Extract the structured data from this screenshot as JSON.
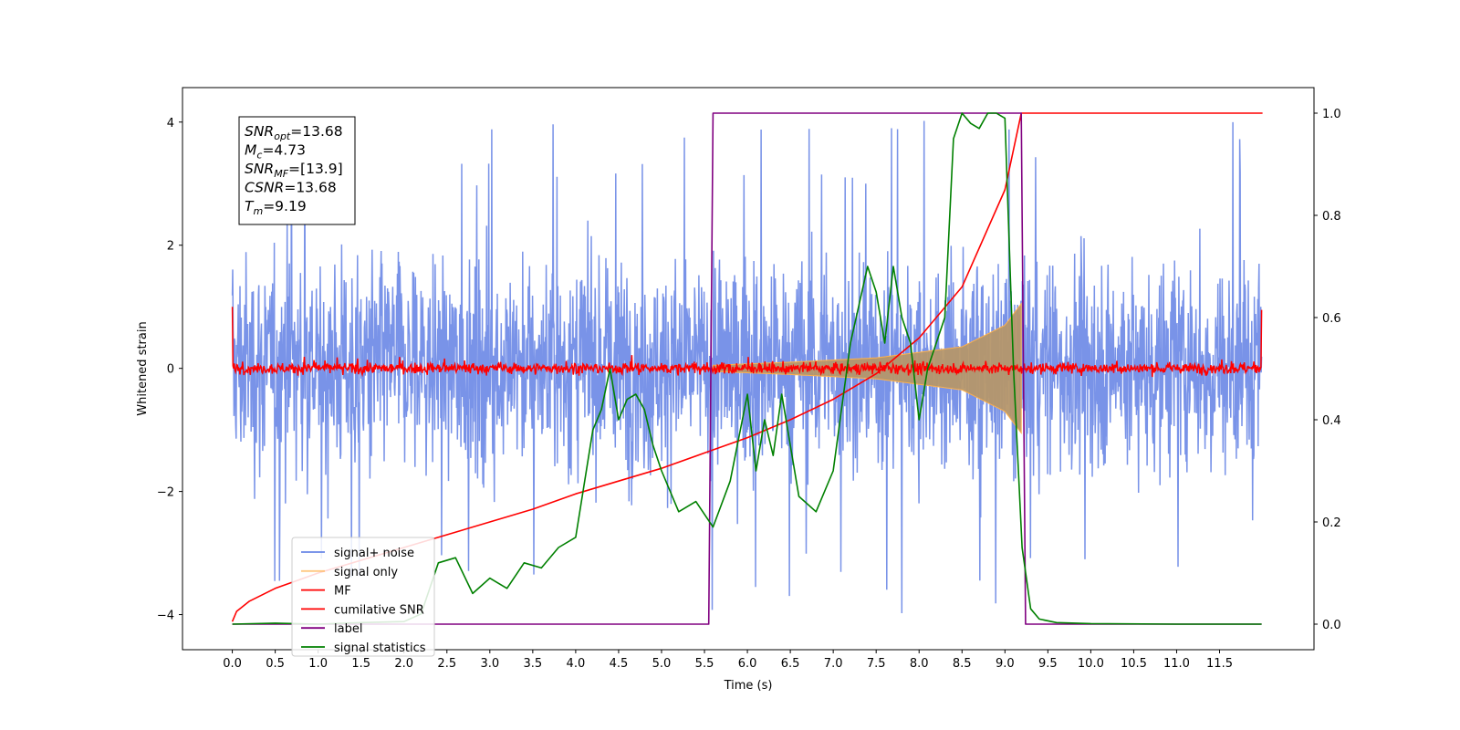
{
  "chart_data": {
    "type": "line",
    "xlabel": "Time (s)",
    "ylabel": "Whitened strain",
    "xlim": [
      -0.58,
      12.6
    ],
    "ylim": [
      -4.57,
      4.56
    ],
    "ylim_right": [
      -0.05,
      1.05
    ],
    "x_ticks": [
      0.0,
      0.5,
      1.0,
      1.5,
      2.0,
      2.5,
      3.0,
      3.5,
      4.0,
      4.5,
      5.0,
      5.5,
      6.0,
      6.5,
      7.0,
      7.5,
      8.0,
      8.5,
      9.0,
      9.5,
      10.0,
      10.5,
      11.0,
      11.5
    ],
    "x_tick_labels": [
      "0.0",
      "0.5",
      "1.0",
      "1.5",
      "2.0",
      "2.5",
      "3.0",
      "3.5",
      "4.0",
      "4.5",
      "5.0",
      "5.5",
      "6.0",
      "6.5",
      "7.0",
      "7.5",
      "8.0",
      "8.5",
      "9.0",
      "9.5",
      "10.0",
      "10.5",
      "11.0",
      "11.5"
    ],
    "y_ticks_left": [
      -4,
      -2,
      0,
      2,
      4
    ],
    "y_tick_labels_left": [
      "−4",
      "−2",
      "0",
      "2",
      "4"
    ],
    "y_ticks_right": [
      0.0,
      0.2,
      0.4,
      0.6,
      0.8,
      1.0
    ],
    "y_tick_labels_right": [
      "0.0",
      "0.2",
      "0.4",
      "0.6",
      "0.8",
      "1.0"
    ],
    "grid": false,
    "legend_position": "lower-left",
    "info_box": {
      "position": "top-left",
      "lines": [
        {
          "sym": "SNR",
          "sub": "opt",
          "val": "=13.68"
        },
        {
          "sym": "M",
          "sub": "c",
          "val": "=4.73"
        },
        {
          "sym": "SNR",
          "sub": "MF",
          "val": "=[13.9]"
        },
        {
          "sym": "CSNR",
          "sub": "",
          "val": "=13.68"
        },
        {
          "sym": "T",
          "sub": "m",
          "val": "=9.19"
        }
      ]
    },
    "series": [
      {
        "name": "signal+ noise",
        "color": "#6a87e6",
        "axis": "left",
        "kind": "noise-band",
        "x_range": [
          0.0,
          11.99
        ],
        "typical_envelope": [
          -2.0,
          2.1
        ],
        "peak_range": [
          -4.1,
          4.1
        ]
      },
      {
        "name": "signal only",
        "color": "#ffb14a",
        "axis": "left",
        "kind": "chirp-envelope",
        "x_range": [
          5.6,
          9.19
        ],
        "amplitude": [
          [
            5.6,
            0.05
          ],
          [
            6.5,
            0.1
          ],
          [
            7.5,
            0.17
          ],
          [
            8.5,
            0.35
          ],
          [
            9.0,
            0.7
          ],
          [
            9.19,
            1.05
          ]
        ]
      },
      {
        "name": "MF",
        "color": "#ff0000",
        "axis": "left",
        "kind": "noise-band",
        "x_range": [
          0.0,
          11.99
        ],
        "typical_envelope": [
          -0.08,
          0.12
        ],
        "edge_values": [
          1.0,
          0.95
        ]
      },
      {
        "name": "cumilative SNR",
        "color": "#ff0000",
        "axis": "right",
        "kind": "curve",
        "x": [
          0.0,
          0.05,
          0.2,
          0.5,
          1.0,
          1.5,
          2.0,
          2.5,
          3.0,
          3.5,
          4.0,
          4.5,
          5.0,
          5.5,
          6.0,
          6.5,
          7.0,
          7.5,
          8.0,
          8.5,
          9.0,
          9.19,
          9.2,
          12.0
        ],
        "y": [
          0.005,
          0.025,
          0.045,
          0.07,
          0.1,
          0.125,
          0.15,
          0.175,
          0.2,
          0.225,
          0.255,
          0.28,
          0.305,
          0.335,
          0.365,
          0.4,
          0.44,
          0.49,
          0.56,
          0.66,
          0.85,
          1.0,
          1.0,
          1.0
        ]
      },
      {
        "name": "label",
        "color": "#800080",
        "axis": "right",
        "kind": "step",
        "x": [
          0.0,
          5.55,
          5.6,
          9.19,
          9.24,
          11.99
        ],
        "y": [
          0.0,
          0.0,
          1.0,
          1.0,
          0.0,
          0.0
        ]
      },
      {
        "name": "signal statistics",
        "color": "#008000",
        "axis": "right",
        "kind": "curve",
        "x": [
          0.0,
          0.5,
          1.0,
          1.5,
          2.0,
          2.2,
          2.4,
          2.6,
          2.8,
          3.0,
          3.2,
          3.4,
          3.6,
          3.8,
          4.0,
          4.2,
          4.3,
          4.4,
          4.5,
          4.6,
          4.7,
          4.8,
          4.9,
          5.0,
          5.2,
          5.4,
          5.6,
          5.8,
          6.0,
          6.1,
          6.2,
          6.3,
          6.4,
          6.5,
          6.6,
          6.8,
          7.0,
          7.2,
          7.4,
          7.5,
          7.6,
          7.7,
          7.8,
          7.9,
          8.0,
          8.1,
          8.2,
          8.3,
          8.4,
          8.5,
          8.6,
          8.7,
          8.8,
          8.9,
          9.0,
          9.1,
          9.2,
          9.3,
          9.4,
          9.6,
          10.0,
          11.0,
          11.99
        ],
        "y": [
          0.0,
          0.002,
          0.0,
          0.003,
          0.005,
          0.02,
          0.12,
          0.13,
          0.06,
          0.09,
          0.07,
          0.12,
          0.11,
          0.15,
          0.17,
          0.38,
          0.42,
          0.5,
          0.4,
          0.44,
          0.45,
          0.42,
          0.35,
          0.3,
          0.22,
          0.24,
          0.19,
          0.28,
          0.45,
          0.3,
          0.4,
          0.33,
          0.45,
          0.35,
          0.25,
          0.22,
          0.3,
          0.55,
          0.7,
          0.65,
          0.55,
          0.7,
          0.6,
          0.55,
          0.4,
          0.5,
          0.55,
          0.6,
          0.95,
          1.0,
          0.98,
          0.97,
          1.0,
          1.0,
          0.99,
          0.5,
          0.15,
          0.03,
          0.01,
          0.003,
          0.001,
          0.0,
          0.0
        ]
      }
    ]
  }
}
